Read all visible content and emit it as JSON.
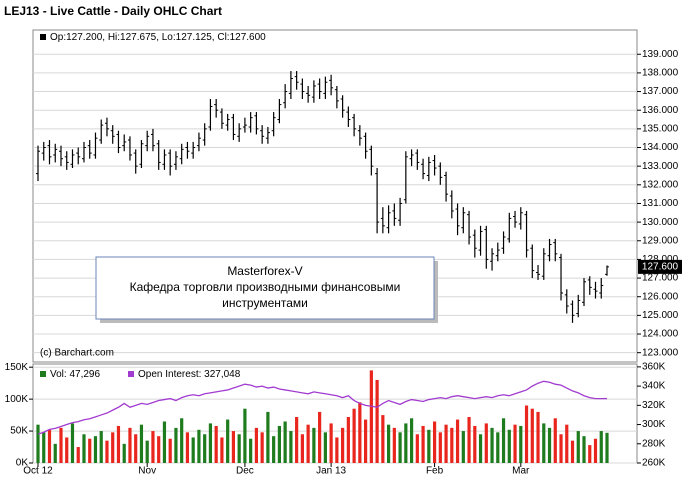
{
  "header": {
    "title": "LEJ13 - Live Cattle - Daily OHLC Chart"
  },
  "chart_data": [
    {
      "type": "ohlc",
      "legend": "Op:127.200, Hi:127.675, Lo:127.125, Cl:127.600",
      "last_label": "127.600",
      "color": "#000000",
      "grid": true,
      "watermark": "(c) Barchart.com",
      "annotation": [
        "Masterforex-V",
        "Кафедра торговли производными финансовыми",
        "инструментами"
      ],
      "ylim": [
        122.5,
        140.3
      ],
      "yticks": [
        {
          "value": 123,
          "label": "123.000"
        },
        {
          "value": 124,
          "label": "124.000"
        },
        {
          "value": 125,
          "label": "125.000"
        },
        {
          "value": 126,
          "label": "126.000"
        },
        {
          "value": 127,
          "label": "127.000"
        },
        {
          "value": 128,
          "label": "128.000"
        },
        {
          "value": 129,
          "label": "129.000"
        },
        {
          "value": 130,
          "label": "130.000"
        },
        {
          "value": 131,
          "label": "131.000"
        },
        {
          "value": 132,
          "label": "132.000"
        },
        {
          "value": 133,
          "label": "133.000"
        },
        {
          "value": 134,
          "label": "134.000"
        },
        {
          "value": 135,
          "label": "135.000"
        },
        {
          "value": 136,
          "label": "136.000"
        },
        {
          "value": 137,
          "label": "137.000"
        },
        {
          "value": 138,
          "label": "138.000"
        },
        {
          "value": 139,
          "label": "139.000"
        }
      ],
      "open": [
        132.6,
        133.7,
        134.1,
        133.6,
        133.8,
        133.5,
        133.1,
        133.7,
        133.4,
        134.1,
        133.6,
        134.4,
        135.3,
        134.9,
        134.7,
        134.1,
        134.4,
        133.7,
        133.1,
        134.1,
        134.7,
        134.2,
        133.1,
        133.7,
        133.1,
        133.4,
        134.0,
        133.7,
        134.1,
        134.4,
        135.1,
        136.3,
        135.9,
        135.2,
        135.6,
        134.6,
        135.1,
        135.1,
        135.7,
        134.9,
        134.5,
        134.9,
        135.5,
        136.4,
        136.9,
        137.8,
        137.4,
        136.9,
        136.7,
        137.4,
        136.9,
        137.6,
        137.1,
        136.6,
        135.9,
        135.6,
        134.9,
        134.6,
        133.9,
        132.6,
        130.2,
        129.7,
        130.6,
        130.1,
        131.2,
        133.4,
        133.7,
        133.1,
        132.5,
        133.3,
        133.0,
        132.5,
        131.4,
        130.7,
        129.7,
        130.4,
        129.3,
        128.5,
        129.6,
        127.9,
        128.2,
        128.6,
        129.1,
        130.3,
        129.9,
        130.4,
        128.6,
        127.3,
        127.1,
        128.2,
        128.9,
        128.1,
        126.1,
        125.6,
        125.1,
        125.7,
        126.9,
        126.4,
        126.2,
        127.2
      ],
      "high": [
        134.1,
        134.3,
        134.4,
        134.2,
        134.1,
        133.8,
        133.9,
        134.0,
        134.3,
        134.4,
        134.8,
        135.5,
        135.6,
        135.2,
        134.9,
        134.7,
        134.6,
        133.9,
        134.4,
        134.9,
        135.0,
        134.4,
        133.9,
        133.9,
        133.8,
        134.2,
        134.3,
        134.3,
        134.8,
        135.3,
        136.6,
        136.6,
        136.1,
        135.8,
        135.8,
        135.3,
        135.6,
        135.9,
        135.9,
        135.2,
        135.1,
        135.9,
        136.6,
        137.4,
        138.1,
        138.1,
        137.7,
        137.3,
        137.6,
        137.7,
        137.8,
        137.9,
        137.3,
        136.8,
        136.2,
        135.8,
        135.2,
        134.8,
        134.1,
        132.9,
        130.8,
        130.9,
        131.0,
        131.3,
        133.8,
        133.9,
        133.9,
        133.4,
        133.5,
        133.6,
        133.2,
        132.7,
        131.7,
        131.0,
        130.8,
        130.6,
        129.6,
        129.8,
        129.8,
        128.6,
        128.9,
        129.5,
        130.5,
        130.6,
        130.8,
        130.6,
        128.8,
        127.7,
        128.6,
        129.1,
        129.1,
        128.3,
        126.4,
        125.8,
        126.1,
        127.0,
        127.1,
        126.8,
        127.0,
        127.675
      ],
      "low": [
        132.2,
        133.3,
        133.1,
        133.2,
        133.0,
        132.8,
        132.9,
        133.1,
        133.2,
        133.4,
        133.4,
        134.2,
        134.6,
        134.2,
        133.7,
        133.8,
        133.3,
        132.6,
        132.9,
        133.8,
        133.8,
        132.8,
        132.8,
        132.5,
        132.8,
        133.1,
        133.4,
        133.4,
        133.8,
        134.1,
        134.9,
        135.6,
        135.0,
        134.9,
        134.4,
        134.3,
        134.8,
        134.8,
        134.7,
        134.2,
        134.2,
        134.6,
        135.3,
        136.1,
        136.6,
        137.1,
        136.6,
        136.4,
        136.4,
        136.6,
        136.6,
        136.8,
        136.1,
        135.6,
        135.1,
        134.6,
        134.1,
        133.4,
        132.5,
        129.4,
        129.4,
        129.4,
        129.8,
        129.8,
        131.0,
        133.0,
        132.8,
        132.3,
        132.2,
        132.5,
        132.0,
        131.1,
        130.2,
        129.3,
        129.4,
        128.8,
        128.1,
        128.2,
        127.5,
        127.4,
        127.9,
        128.3,
        128.9,
        129.7,
        129.6,
        128.1,
        127.0,
        126.9,
        126.9,
        127.9,
        127.9,
        125.8,
        125.1,
        124.6,
        124.9,
        125.5,
        126.1,
        125.9,
        125.9,
        127.125
      ],
      "close": [
        133.8,
        134.0,
        133.5,
        133.9,
        133.4,
        133.2,
        133.6,
        133.5,
        134.0,
        133.7,
        134.5,
        135.2,
        135.0,
        134.6,
        134.0,
        134.3,
        133.6,
        133.0,
        134.2,
        134.6,
        134.1,
        133.2,
        133.6,
        133.0,
        133.5,
        133.9,
        133.8,
        134.0,
        134.5,
        135.0,
        136.2,
        136.0,
        135.3,
        135.5,
        134.7,
        135.0,
        135.2,
        135.6,
        135.0,
        134.6,
        134.8,
        135.6,
        136.3,
        137.0,
        137.7,
        137.5,
        137.0,
        136.8,
        137.3,
        137.0,
        137.5,
        137.2,
        136.5,
        136.0,
        135.5,
        135.0,
        134.5,
        133.8,
        133.0,
        130.0,
        129.8,
        130.5,
        130.2,
        131.0,
        133.5,
        133.6,
        133.2,
        132.6,
        133.2,
        132.9,
        132.4,
        131.5,
        130.6,
        129.8,
        130.5,
        129.2,
        128.6,
        129.5,
        128.0,
        128.3,
        128.5,
        129.2,
        130.2,
        130.0,
        130.5,
        128.5,
        127.4,
        127.2,
        128.3,
        128.8,
        128.3,
        126.2,
        125.5,
        125.0,
        125.8,
        126.8,
        126.5,
        126.3,
        126.6,
        127.6
      ]
    },
    {
      "type": "volume",
      "grid": true,
      "categories": [
        "Oct 12",
        null,
        null,
        null,
        null,
        null,
        null,
        null,
        null,
        null,
        null,
        null,
        null,
        null,
        null,
        null,
        null,
        null,
        null,
        "Nov",
        null,
        null,
        null,
        null,
        null,
        null,
        null,
        null,
        null,
        null,
        null,
        null,
        null,
        null,
        null,
        null,
        "Dec",
        null,
        null,
        null,
        null,
        null,
        null,
        null,
        null,
        null,
        null,
        null,
        null,
        null,
        null,
        "Jan 13",
        null,
        null,
        null,
        null,
        null,
        null,
        null,
        null,
        null,
        null,
        null,
        null,
        null,
        null,
        null,
        null,
        null,
        "Feb",
        null,
        null,
        null,
        null,
        null,
        null,
        null,
        null,
        null,
        null,
        null,
        null,
        null,
        null,
        "Mar",
        null,
        null,
        null,
        null,
        null,
        null,
        null,
        null,
        null,
        null,
        null,
        null,
        null,
        null,
        null
      ],
      "ylim": [
        0,
        155000
      ],
      "yticks": [
        {
          "value": 0,
          "label": "0K"
        },
        {
          "value": 50000,
          "label": "50K"
        },
        {
          "value": 100000,
          "label": "100K"
        },
        {
          "value": 150000,
          "label": "150K"
        }
      ],
      "y2lim": [
        260000,
        363000
      ],
      "y2ticks": [
        {
          "value": 260000,
          "label": "260K"
        },
        {
          "value": 280000,
          "label": "280K"
        },
        {
          "value": 300000,
          "label": "300K"
        },
        {
          "value": 320000,
          "label": "320K"
        },
        {
          "value": 340000,
          "label": "340K"
        },
        {
          "value": 360000,
          "label": "360K"
        }
      ],
      "series": [
        {
          "name": "Vol: 47,296",
          "up_color": "#1e7b1e",
          "down_color": "#e8261e",
          "values": [
            60000,
            48000,
            52000,
            30000,
            55000,
            40000,
            62000,
            25000,
            45000,
            38000,
            42000,
            50000,
            35000,
            48000,
            58000,
            30000,
            55000,
            45000,
            60000,
            35000,
            50000,
            42000,
            65000,
            38000,
            55000,
            70000,
            48000,
            40000,
            52000,
            45000,
            62000,
            58000,
            40000,
            68000,
            50000,
            45000,
            85000,
            38000,
            55000,
            48000,
            80000,
            42000,
            58000,
            65000,
            50000,
            72000,
            45000,
            60000,
            55000,
            80000,
            48000,
            62000,
            40000,
            55000,
            72000,
            85000,
            95000,
            68000,
            145000,
            130000,
            75000,
            60000,
            55000,
            48000,
            62000,
            70000,
            45000,
            58000,
            52000,
            65000,
            48000,
            60000,
            55000,
            68000,
            50000,
            72000,
            58000,
            45000,
            62000,
            55000,
            48000,
            70000,
            52000,
            60000,
            58000,
            90000,
            85000,
            80000,
            62000,
            55000,
            70000,
            45000,
            60000,
            35000,
            50000,
            42000,
            28000,
            38000,
            50000,
            47296
          ]
        },
        {
          "name": "Open Interest: 327,048",
          "color": "#a23bd0",
          "axis": "y2",
          "values": [
            290000,
            292000,
            295000,
            296000,
            298000,
            300000,
            302000,
            303000,
            305000,
            306000,
            308000,
            310000,
            312000,
            315000,
            318000,
            322000,
            318000,
            320000,
            322000,
            321000,
            323000,
            325000,
            326000,
            327000,
            325000,
            328000,
            330000,
            331000,
            330000,
            332000,
            333000,
            334000,
            335000,
            336000,
            338000,
            340000,
            342000,
            341000,
            339000,
            340000,
            338000,
            339000,
            337000,
            336000,
            335000,
            334000,
            333000,
            332000,
            334000,
            333000,
            332000,
            331000,
            330000,
            328000,
            330000,
            325000,
            322000,
            320000,
            319000,
            318000,
            322000,
            325000,
            323000,
            321000,
            324000,
            326000,
            325000,
            324000,
            326000,
            327000,
            328000,
            327000,
            329000,
            330000,
            329000,
            328000,
            327000,
            328000,
            329000,
            328000,
            330000,
            331000,
            330000,
            332000,
            334000,
            336000,
            340000,
            343000,
            345000,
            344000,
            342000,
            341000,
            338000,
            335000,
            333000,
            330000,
            328000,
            327000,
            327000,
            327048
          ]
        }
      ]
    }
  ]
}
